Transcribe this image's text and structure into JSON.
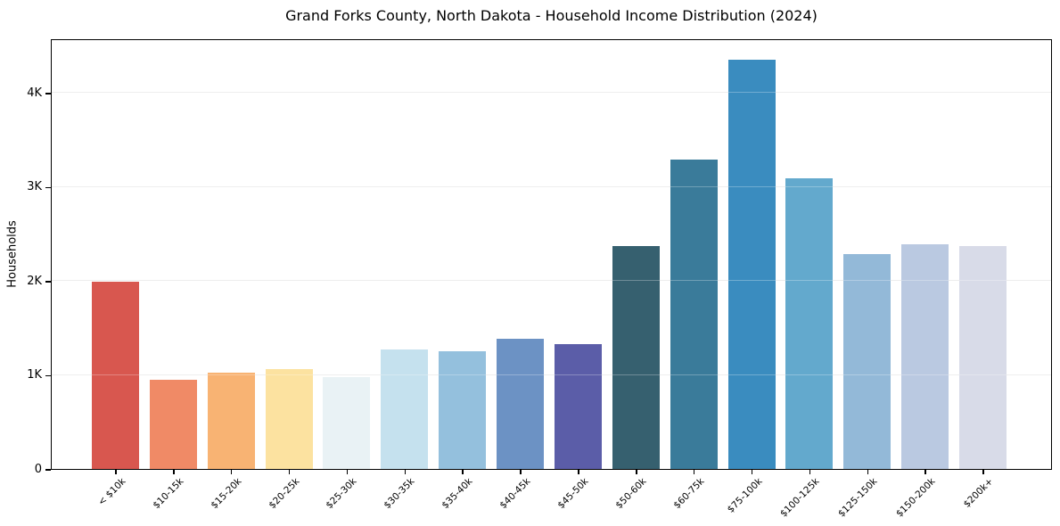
{
  "header": {
    "title": "Grand Forks County, North Dakota - Household Income Distribution (2024)"
  },
  "chart_data": {
    "type": "bar",
    "title": "Grand Forks County, North Dakota - Household Income Distribution (2024)",
    "xlabel": "",
    "ylabel": "Households",
    "categories": [
      "< $10k",
      "$10-15k",
      "$15-20k",
      "$20-25k",
      "$25-30k",
      "$30-35k",
      "$35-40k",
      "$40-45k",
      "$45-50k",
      "$50-60k",
      "$60-75k",
      "$75-100k",
      "$100-125k",
      "$125-150k",
      "$150-200k",
      "$200k+"
    ],
    "values": [
      1990,
      950,
      1020,
      1060,
      980,
      1270,
      1250,
      1385,
      1325,
      2370,
      3290,
      4350,
      3090,
      2280,
      2390,
      2370
    ],
    "bar_colors": [
      "#d8574f",
      "#f08a66",
      "#f8b373",
      "#fce2a0",
      "#e9f2f5",
      "#c5e1ee",
      "#94c0dd",
      "#6c92c4",
      "#5b5da8",
      "#36606f",
      "#3a7b9a",
      "#3a8cbf",
      "#63a9cd",
      "#93b9d8",
      "#bac9e1",
      "#d8dbe8"
    ],
    "ytick_values": [
      0,
      1000,
      2000,
      3000,
      4000
    ],
    "ytick_labels": [
      "0",
      "1K",
      "2K",
      "3K",
      "4K"
    ],
    "ylim": [
      0,
      4578
    ],
    "grid": "horizontal",
    "grid_color": "#e8e8e8",
    "axis_color": "#000000",
    "legend": "none"
  }
}
